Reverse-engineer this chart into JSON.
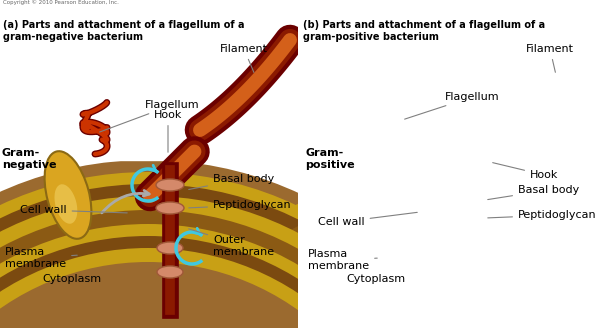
{
  "background_color": "#ffffff",
  "caption_a": "(a) Parts and attachment of a flagellum of a\ngram-negative bacterium",
  "caption_b": "(b) Parts and attachment of a flagellum of a\ngram-positive bacterium",
  "copyright": "Copyright © 2010 Pearson Education, Inc.",
  "colors": {
    "flagellum_dark": "#6B0000",
    "flagellum_mid": "#8B1A00",
    "flagellum_light": "#CC3300",
    "flagellum_highlight": "#D4601A",
    "bacterium_gold": "#DAA520",
    "bacterium_dark": "#B8860B",
    "bacterium_highlight": "#F5D060",
    "cytoplasm_brown": "#9B6A2F",
    "membrane_gold": "#DAA520",
    "membrane_stripe": "#C8A800",
    "peptido_brown": "#8B6914",
    "outer_mem_dark": "#7B4F10",
    "disk_salmon": "#D4896A",
    "disk_edge": "#B06040",
    "rotation_blue": "#40C8E0",
    "gray_arrow": "#AAAAAA",
    "white": "#ffffff",
    "black": "#000000"
  }
}
